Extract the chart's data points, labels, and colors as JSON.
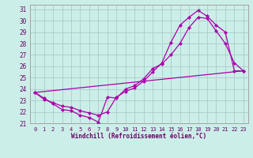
{
  "xlabel": "Windchill (Refroidissement éolien,°C)",
  "bg_color": "#cceee8",
  "grid_color": "#aacccc",
  "line_color": "#aa00aa",
  "xlim": [
    -0.5,
    23.5
  ],
  "ylim": [
    21,
    31.4
  ],
  "xticks": [
    0,
    1,
    2,
    3,
    4,
    5,
    6,
    7,
    8,
    9,
    10,
    11,
    12,
    13,
    14,
    15,
    16,
    17,
    18,
    19,
    20,
    21,
    22,
    23
  ],
  "yticks": [
    21,
    22,
    23,
    24,
    25,
    26,
    27,
    28,
    29,
    30,
    31
  ],
  "line1_x": [
    0,
    1,
    2,
    3,
    4,
    5,
    6,
    7,
    8,
    9,
    10,
    11,
    12,
    13,
    14,
    15,
    16,
    17,
    18,
    19,
    20,
    21,
    22,
    23
  ],
  "line1_y": [
    23.7,
    23.2,
    22.7,
    22.2,
    22.1,
    21.7,
    21.5,
    21.1,
    23.3,
    23.2,
    24.0,
    24.3,
    24.9,
    25.8,
    26.2,
    27.0,
    28.0,
    29.4,
    30.3,
    30.2,
    29.1,
    28.0,
    26.3,
    25.6
  ],
  "line2_x": [
    0,
    1,
    2,
    3,
    4,
    5,
    6,
    7,
    8,
    9,
    10,
    11,
    12,
    13,
    14,
    15,
    16,
    17,
    18,
    19,
    20,
    21,
    22,
    23
  ],
  "line2_y": [
    23.7,
    23.1,
    22.8,
    22.5,
    22.4,
    22.1,
    21.9,
    21.7,
    22.0,
    23.3,
    23.8,
    24.1,
    24.7,
    25.5,
    26.3,
    28.1,
    29.6,
    30.3,
    30.9,
    30.4,
    29.6,
    29.0,
    25.6,
    25.6
  ],
  "line3_x": [
    0,
    23
  ],
  "line3_y": [
    23.7,
    25.6
  ]
}
